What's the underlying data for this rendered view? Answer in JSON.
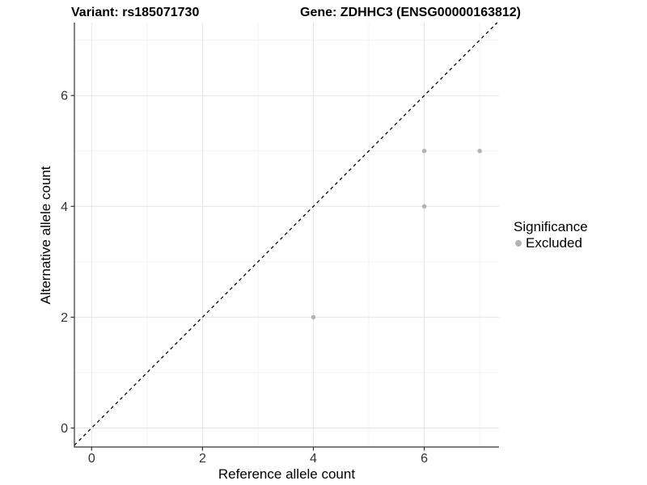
{
  "titles": {
    "variant": "Variant: rs185071730",
    "gene": "Gene: ZDHHC3 (ENSG00000163812)"
  },
  "legend": {
    "title": "Significance",
    "items": [
      {
        "label": "Excluded",
        "color": "#b3b3b3"
      }
    ]
  },
  "chart_data": {
    "type": "scatter",
    "title": "Variant: rs185071730   Gene: ZDHHC3 (ENSG00000163812)",
    "xlabel": "Reference allele count",
    "ylabel": "Alternative allele count",
    "xlim": [
      -0.31,
      7.35
    ],
    "ylim": [
      -0.34,
      7.32
    ],
    "xticks": [
      0,
      2,
      4,
      6
    ],
    "yticks": [
      0,
      2,
      4,
      6
    ],
    "minor_grid_x": [
      1,
      3,
      5,
      7
    ],
    "minor_grid_y": [
      1,
      3,
      5,
      7
    ],
    "grid": "major+minor",
    "legend_position": "right",
    "series": [
      {
        "name": "Excluded",
        "color": "#b3b3b3",
        "points": [
          [
            4,
            2
          ],
          [
            6,
            4
          ],
          [
            6,
            5
          ],
          [
            7,
            5
          ]
        ]
      }
    ],
    "reference_line": {
      "slope": 1,
      "intercept": 0,
      "style": "dashed",
      "color": "#000000"
    },
    "style": {
      "major_grid_color": "#e4e4e4",
      "minor_grid_color": "#f2f2f2",
      "axis_color": "#333333",
      "tick_label_color": "#333333",
      "point_radius": 2.8
    }
  }
}
